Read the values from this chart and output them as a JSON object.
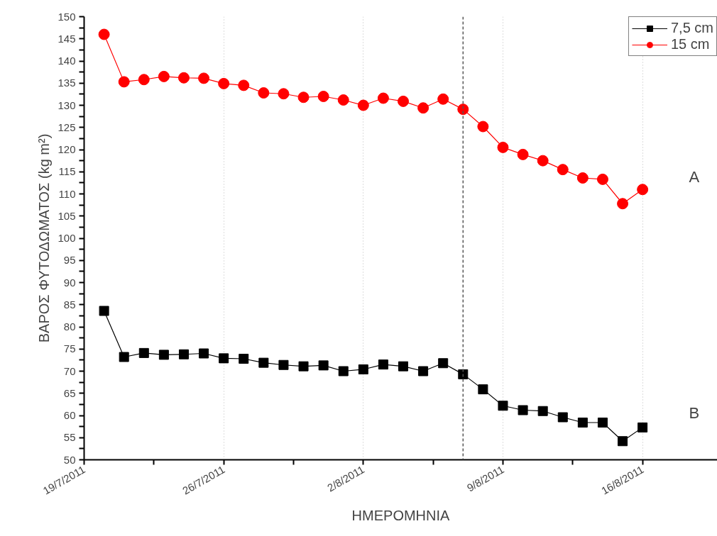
{
  "chart_data": {
    "type": "line",
    "xlabel": "ΗΜΕΡΟΜΗΝΙΑ",
    "ylabel": "ΒΑΡΟΣ ΦΥΤΟΔΩΜΑΤΟΣ (kg m²)",
    "x": [
      "2011-07-20",
      "2011-07-21",
      "2011-07-22",
      "2011-07-23",
      "2011-07-24",
      "2011-07-25",
      "2011-07-26",
      "2011-07-27",
      "2011-07-28",
      "2011-07-29",
      "2011-07-30",
      "2011-07-31",
      "2011-08-01",
      "2011-08-02",
      "2011-08-03",
      "2011-08-04",
      "2011-08-05",
      "2011-08-06",
      "2011-08-07",
      "2011-08-08",
      "2011-08-09",
      "2011-08-10",
      "2011-08-11",
      "2011-08-12",
      "2011-08-13",
      "2011-08-14",
      "2011-08-15",
      "2011-08-16"
    ],
    "series": [
      {
        "name": "7,5 cm",
        "color": "#000000",
        "marker": "square",
        "values": [
          83.6,
          73.2,
          74.1,
          73.7,
          73.8,
          74.0,
          72.9,
          72.8,
          71.9,
          71.4,
          71.1,
          71.3,
          70.0,
          70.4,
          71.5,
          71.1,
          70.0,
          71.8,
          69.3,
          65.9,
          62.2,
          61.2,
          61.0,
          59.6,
          58.4,
          58.4,
          54.2,
          57.3
        ]
      },
      {
        "name": "15 cm",
        "color": "#ff0000",
        "marker": "circle",
        "values": [
          146.0,
          135.3,
          135.8,
          136.5,
          136.2,
          136.1,
          134.9,
          134.5,
          132.8,
          132.6,
          131.8,
          132.0,
          131.2,
          130.0,
          131.6,
          130.9,
          129.4,
          131.4,
          129.1,
          125.2,
          120.5,
          118.9,
          117.5,
          115.5,
          113.6,
          113.3,
          107.8,
          111.0
        ]
      }
    ],
    "xlim": [
      "2011-07-19",
      "2011-08-19T18:00"
    ],
    "xticks": [
      {
        "value": "2011-07-19",
        "label": "19/7/2011"
      },
      {
        "value": "2011-07-22T12:00",
        "label": null
      },
      {
        "value": "2011-07-26",
        "label": "26/7/2011"
      },
      {
        "value": "2011-07-29T12:00",
        "label": null
      },
      {
        "value": "2011-08-02",
        "label": "2/8/2011"
      },
      {
        "value": "2011-08-05T12:00",
        "label": null
      },
      {
        "value": "2011-08-09",
        "label": "9/8/2011"
      },
      {
        "value": "2011-08-12T12:00",
        "label": null
      },
      {
        "value": "2011-08-16",
        "label": "16/8/2011"
      }
    ],
    "ylim": [
      50,
      150
    ],
    "yticks": [
      50,
      {
        "value": 52.5,
        "label": null
      },
      55,
      {
        "value": 57.5,
        "label": null
      },
      60,
      {
        "value": 62.5,
        "label": null
      },
      65,
      {
        "value": 67.5,
        "label": null
      },
      70,
      {
        "value": 72.5,
        "label": null
      },
      75,
      {
        "value": 77.5,
        "label": null
      },
      80,
      {
        "value": 82.5,
        "label": null
      },
      85,
      {
        "value": 87.5,
        "label": null
      },
      90,
      {
        "value": 92.5,
        "label": null
      },
      95,
      {
        "value": 97.5,
        "label": null
      },
      100,
      {
        "value": 102.5,
        "label": null
      },
      105,
      {
        "value": 107.5,
        "label": null
      },
      110,
      {
        "value": 112.5,
        "label": null
      },
      115,
      {
        "value": 117.5,
        "label": null
      },
      120,
      {
        "value": 122.5,
        "label": null
      },
      125,
      {
        "value": 127.5,
        "label": null
      },
      130,
      {
        "value": 132.5,
        "label": null
      },
      135,
      {
        "value": 137.5,
        "label": null
      },
      140,
      {
        "value": 142.5,
        "label": null
      },
      145,
      {
        "value": 147.5,
        "label": null
      },
      150
    ],
    "ref_lines": [
      {
        "axis": "x",
        "value": "2011-08-07",
        "label": null,
        "color": "#555555",
        "line_style": "dashed"
      }
    ],
    "annotations": [
      "A",
      "B"
    ],
    "grid": "x",
    "legend": "top right",
    "line_style": "solid"
  }
}
